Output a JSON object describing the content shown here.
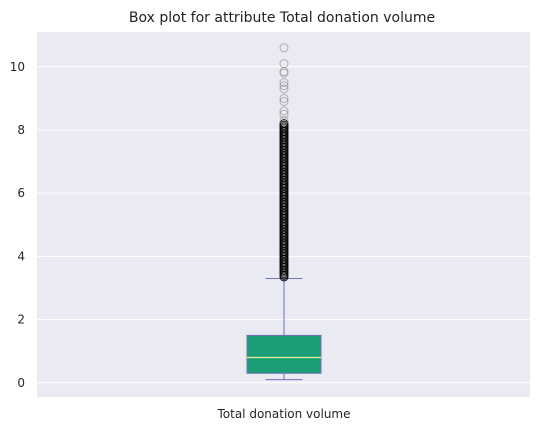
{
  "chart_data": {
    "type": "box",
    "title": "Box plot for attribute Total donation volume",
    "categories": [
      "Total donation volume"
    ],
    "xlabel": "",
    "ylabel": "",
    "ylim": [
      -0.45,
      11.1
    ],
    "yticks": [
      0,
      2,
      4,
      6,
      8,
      10
    ],
    "grid": true,
    "legend": "none",
    "colors": {
      "background": "#EAEAF2",
      "grid": "#FFFFFF",
      "box_fill": "#1B9E77",
      "box_edge": "#7570B3",
      "median": "#E6F598",
      "whisker": "#7570B3",
      "flier_edge": "#000000"
    },
    "series": [
      {
        "q1": 0.3,
        "median": 0.8,
        "q3": 1.5,
        "whisker_low": 0.1,
        "whisker_high": 3.3,
        "fliers": [
          3.35,
          3.4,
          3.45,
          3.5,
          3.55,
          3.6,
          3.65,
          3.7,
          3.75,
          3.8,
          3.85,
          3.9,
          3.95,
          4.0,
          4.05,
          4.1,
          4.15,
          4.2,
          4.25,
          4.3,
          4.35,
          4.4,
          4.45,
          4.5,
          4.55,
          4.6,
          4.65,
          4.7,
          4.75,
          4.8,
          4.85,
          4.9,
          4.95,
          5.0,
          5.05,
          5.1,
          5.15,
          5.2,
          5.25,
          5.3,
          5.35,
          5.4,
          5.45,
          5.5,
          5.55,
          5.6,
          5.65,
          5.7,
          5.75,
          5.8,
          5.85,
          5.9,
          5.95,
          6.0,
          6.05,
          6.1,
          6.15,
          6.2,
          6.25,
          6.3,
          6.35,
          6.4,
          6.45,
          6.5,
          6.55,
          6.6,
          6.65,
          6.7,
          6.75,
          6.8,
          6.85,
          6.9,
          6.95,
          7.0,
          7.05,
          7.1,
          7.15,
          7.2,
          7.25,
          7.3,
          7.35,
          7.4,
          7.45,
          7.5,
          7.55,
          7.6,
          7.65,
          7.7,
          7.75,
          7.8,
          7.85,
          7.9,
          7.95,
          8.0,
          8.05,
          8.1,
          8.15,
          8.2,
          8.3,
          8.5,
          8.6,
          8.9,
          9.0,
          9.3,
          9.4,
          9.5,
          9.8,
          9.85,
          10.1,
          10.6
        ]
      }
    ]
  }
}
